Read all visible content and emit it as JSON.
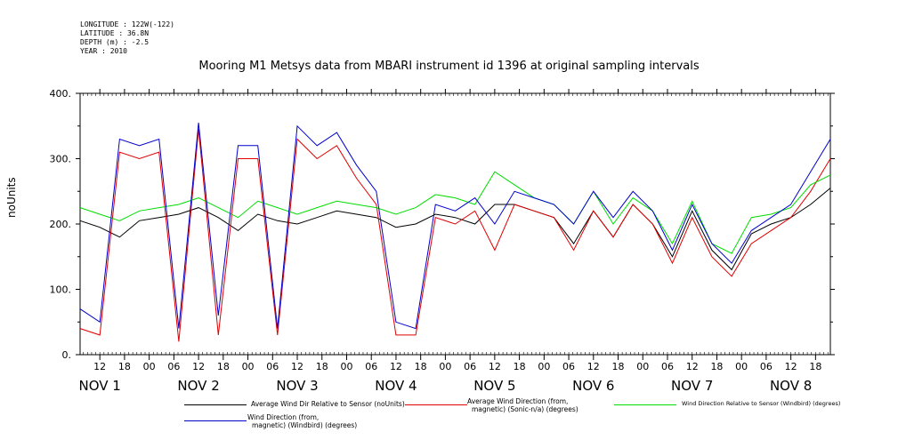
{
  "meta": {
    "longitude": "LONGITUDE : 122W(-122)",
    "latitude": "LATITUDE : 36.8N",
    "depth": "DEPTH (m) : -2.5",
    "year": "YEAR : 2010"
  },
  "chart_data": {
    "type": "line",
    "title": "Mooring M1 Metsys data from MBARI instrument id 1396 at original sampling intervals",
    "ylabel": "noUnits",
    "xlabel": "",
    "ylim": [
      0,
      400
    ],
    "xlim_days": [
      0.3,
      7.9
    ],
    "y_ticks": [
      "0.",
      "100.",
      "200.",
      "300.",
      "400."
    ],
    "hour_tick_labels": [
      "12",
      "18",
      "00",
      "06",
      "12",
      "18",
      "00",
      "06",
      "12",
      "18",
      "00",
      "06",
      "12",
      "18",
      "00",
      "06",
      "12",
      "18",
      "00",
      "06",
      "12",
      "18",
      "00",
      "06",
      "12",
      "18",
      "00",
      "06",
      "12",
      "18",
      "00",
      "06"
    ],
    "day_labels": [
      "NOV  1",
      "NOV  2",
      "NOV  3",
      "NOV  4",
      "NOV  5",
      "NOV  6",
      "NOV  7",
      "NOV  8"
    ],
    "colors": {
      "sensor": "#000000",
      "sonic": "#e00000",
      "windbird_rel": "#00dd00",
      "windbird_dir": "#0000cc"
    },
    "series": [
      {
        "name": "Average Wind Dir Relative to Sensor (noUnits)",
        "key": "sensor",
        "x": [
          0.3,
          0.5,
          0.7,
          0.9,
          1.1,
          1.3,
          1.5,
          1.7,
          1.9,
          2.1,
          2.3,
          2.5,
          2.7,
          2.9,
          3.1,
          3.3,
          3.5,
          3.7,
          3.9,
          4.1,
          4.3,
          4.5,
          4.7,
          4.9,
          5.1,
          5.3,
          5.5,
          5.7,
          5.9,
          6.1,
          6.3,
          6.5,
          6.7,
          6.9,
          7.1,
          7.3,
          7.5,
          7.7,
          7.9
        ],
        "values": [
          205,
          195,
          180,
          205,
          210,
          215,
          225,
          210,
          190,
          215,
          205,
          200,
          210,
          220,
          215,
          210,
          195,
          200,
          215,
          210,
          200,
          230,
          230,
          220,
          210,
          170,
          220,
          180,
          230,
          200,
          150,
          220,
          160,
          130,
          185,
          200,
          210,
          230,
          255
        ]
      },
      {
        "name": "Average Wind Direction (from, magnetic) (Sonic-n/a) (degrees)",
        "key": "sonic",
        "x": [
          0.3,
          0.5,
          0.7,
          0.9,
          1.1,
          1.3,
          1.5,
          1.7,
          1.9,
          2.1,
          2.3,
          2.5,
          2.7,
          2.9,
          3.1,
          3.3,
          3.5,
          3.7,
          3.9,
          4.1,
          4.3,
          4.5,
          4.7,
          4.9,
          5.1,
          5.3,
          5.5,
          5.7,
          5.9,
          6.1,
          6.3,
          6.5,
          6.7,
          6.9,
          7.1,
          7.3,
          7.5,
          7.7,
          7.9
        ],
        "values": [
          40,
          30,
          310,
          300,
          310,
          20,
          345,
          30,
          300,
          300,
          30,
          330,
          300,
          320,
          270,
          230,
          30,
          30,
          210,
          200,
          220,
          160,
          230,
          220,
          210,
          160,
          220,
          180,
          230,
          200,
          140,
          210,
          150,
          120,
          170,
          190,
          210,
          250,
          300
        ]
      },
      {
        "name": "Wind Direction Relative to Sensor (Windbird) (degrees)",
        "key": "windbird_rel",
        "x": [
          0.3,
          0.5,
          0.7,
          0.9,
          1.1,
          1.3,
          1.5,
          1.7,
          1.9,
          2.1,
          2.3,
          2.5,
          2.7,
          2.9,
          3.1,
          3.3,
          3.5,
          3.7,
          3.9,
          4.1,
          4.3,
          4.5,
          4.7,
          4.9,
          5.1,
          5.3,
          5.5,
          5.7,
          5.9,
          6.1,
          6.3,
          6.5,
          6.7,
          6.9,
          7.1,
          7.3,
          7.5,
          7.7,
          7.9
        ],
        "values": [
          225,
          215,
          205,
          220,
          225,
          230,
          240,
          225,
          210,
          235,
          225,
          215,
          225,
          235,
          230,
          225,
          215,
          225,
          245,
          240,
          230,
          280,
          260,
          240,
          230,
          200,
          250,
          200,
          240,
          220,
          170,
          235,
          170,
          155,
          210,
          215,
          225,
          260,
          275
        ]
      },
      {
        "name": "Wind Direction (from, magnetic) (Windbird) (degrees)",
        "key": "windbird_dir",
        "x": [
          0.3,
          0.5,
          0.7,
          0.9,
          1.1,
          1.3,
          1.5,
          1.7,
          1.9,
          2.1,
          2.3,
          2.5,
          2.7,
          2.9,
          3.1,
          3.3,
          3.5,
          3.7,
          3.9,
          4.1,
          4.3,
          4.5,
          4.7,
          4.9,
          5.1,
          5.3,
          5.5,
          5.7,
          5.9,
          6.1,
          6.3,
          6.5,
          6.7,
          6.9,
          7.1,
          7.3,
          7.5,
          7.7,
          7.9
        ],
        "values": [
          70,
          50,
          330,
          320,
          330,
          40,
          355,
          60,
          320,
          320,
          40,
          350,
          320,
          340,
          290,
          250,
          50,
          40,
          230,
          220,
          240,
          200,
          250,
          240,
          230,
          200,
          250,
          210,
          250,
          220,
          160,
          230,
          170,
          140,
          190,
          210,
          230,
          280,
          330
        ]
      }
    ]
  },
  "legend": {
    "sensor": "Average Wind Dir Relative to Sensor (noUnits)",
    "sonic_l1": "Average Wind Direction (from,",
    "sonic_l2": "magnetic) (Sonic-n/a) (degrees)",
    "windbird_rel": "Wind Direction Relative to Sensor (Windbird) (degrees)",
    "windbird_dir_l1": "Wind Direction (from,",
    "windbird_dir_l2": "magnetic) (Windbird) (degrees)"
  }
}
